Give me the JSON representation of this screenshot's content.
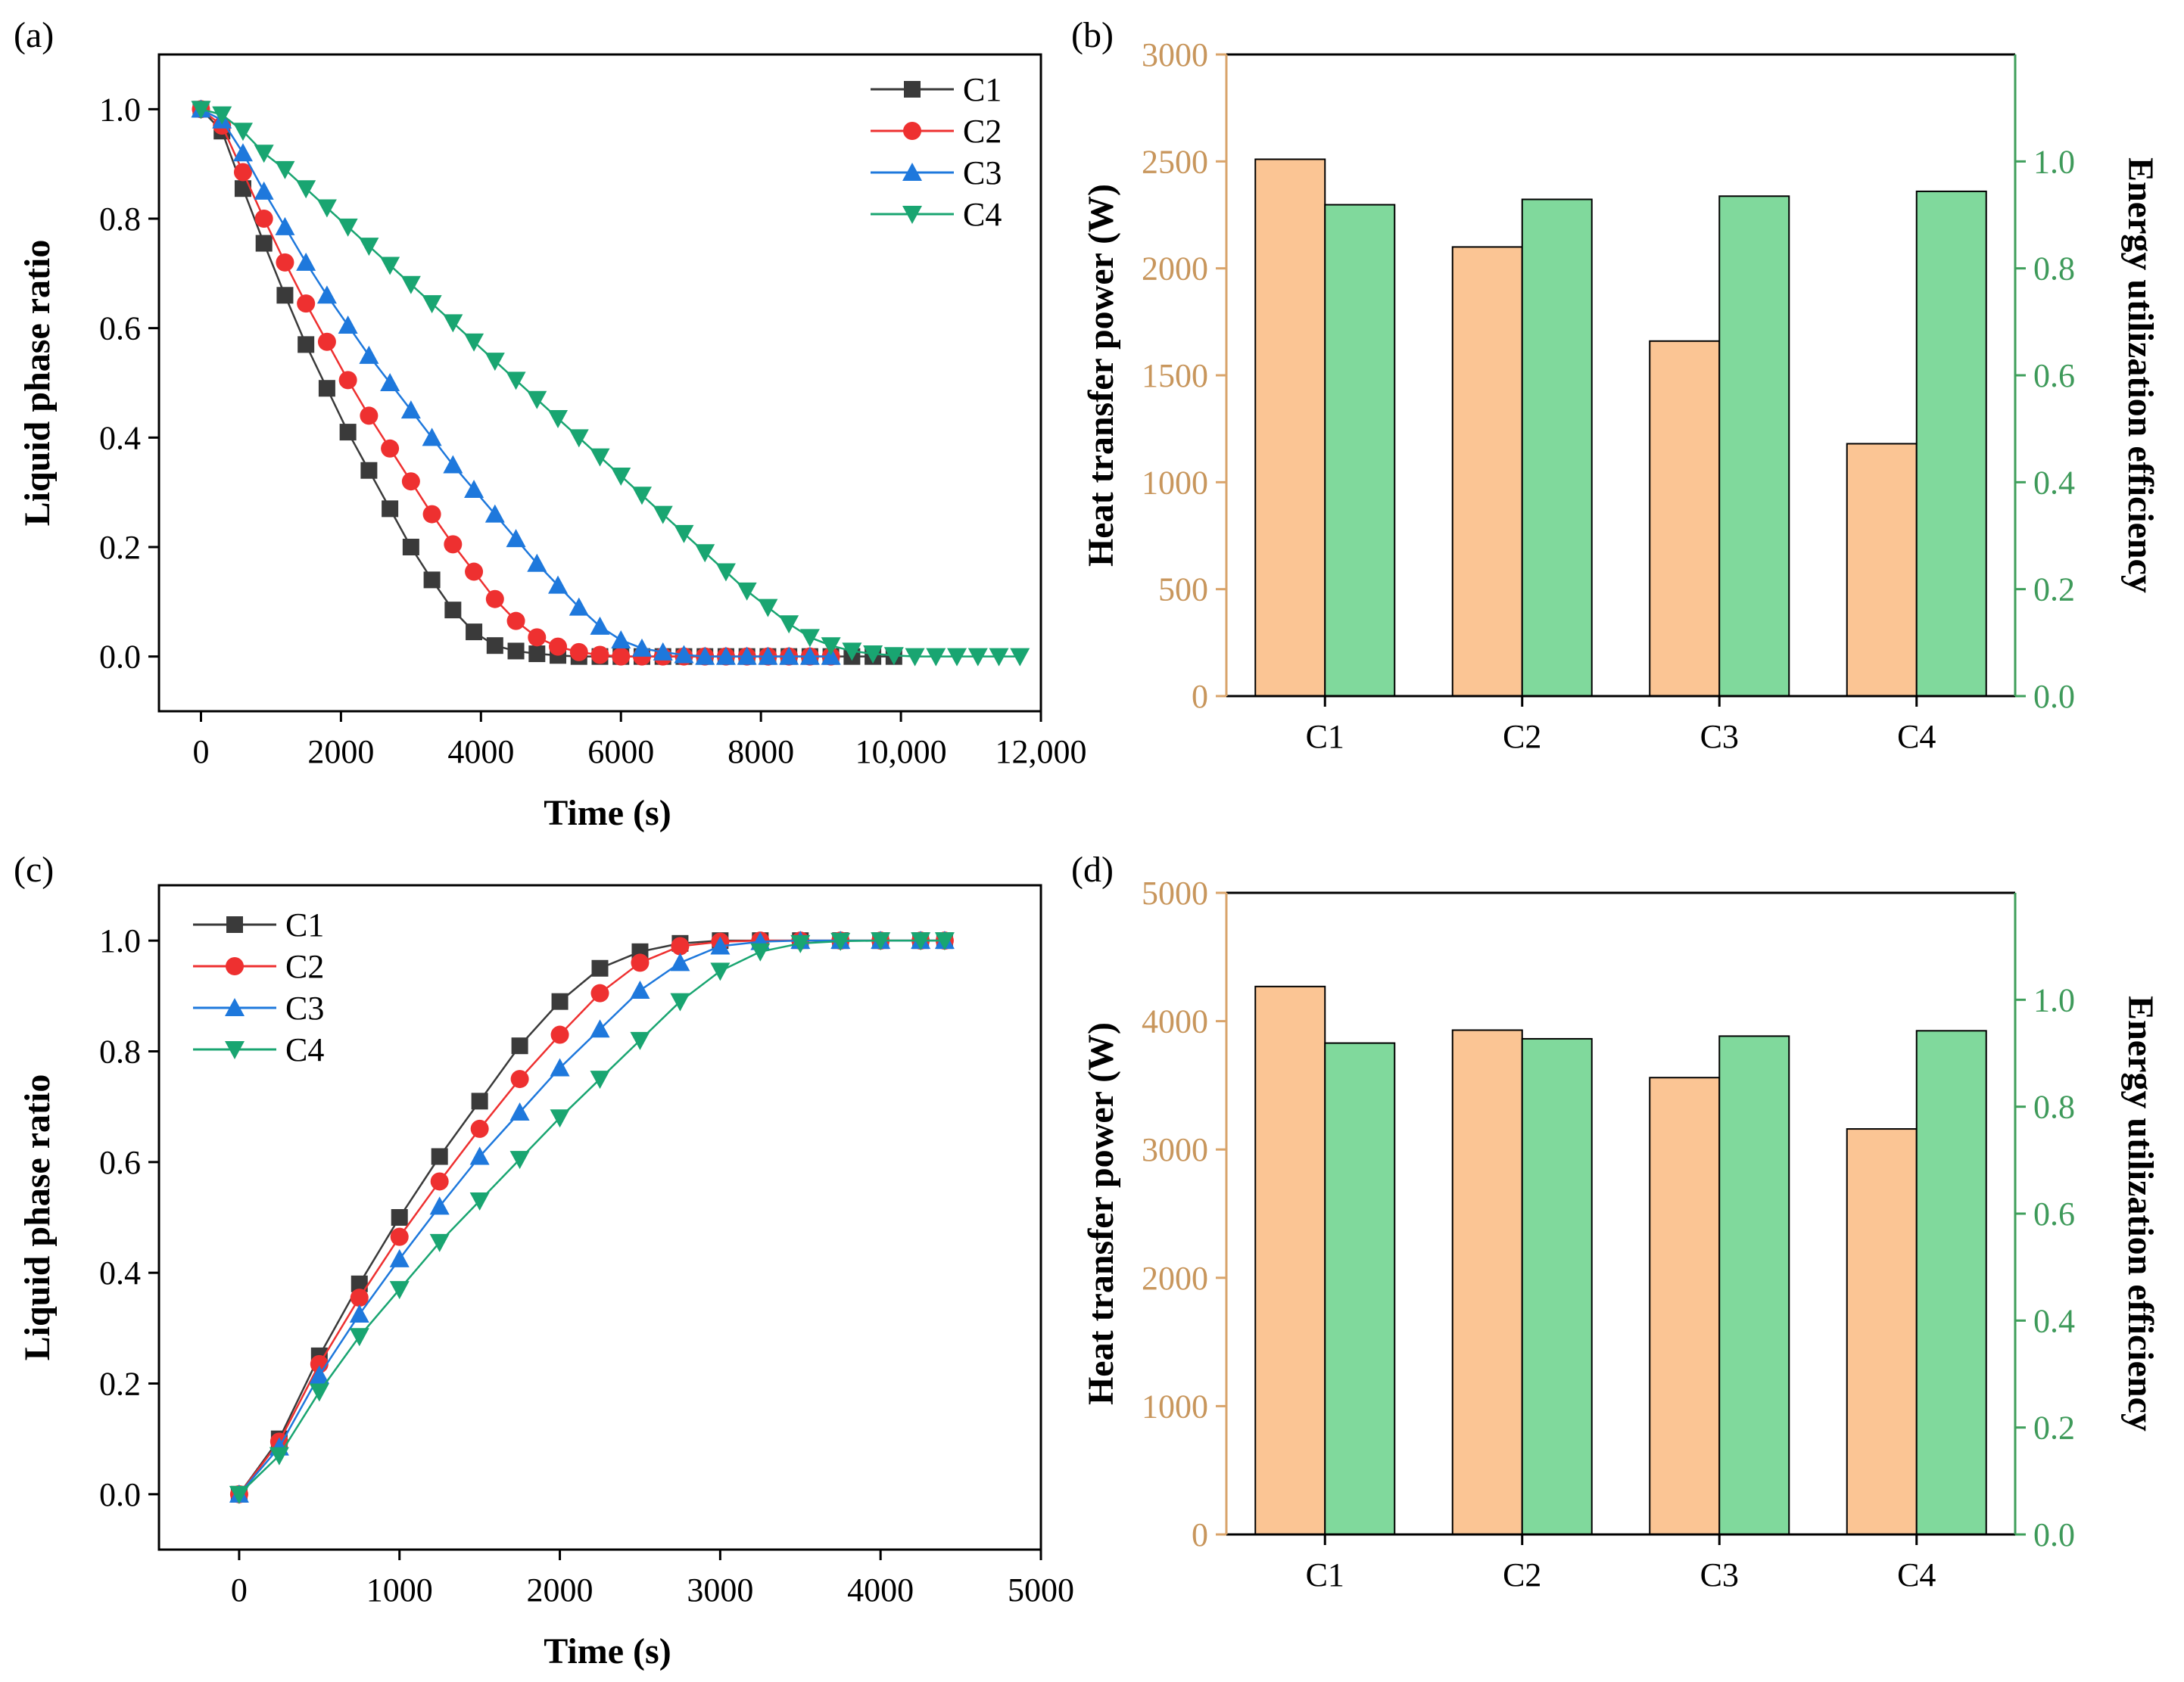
{
  "colors": {
    "C1": "#3a3a3a",
    "C2": "#ee3030",
    "C3": "#1e78dc",
    "C4": "#19a571",
    "bar_power": "#fbc594",
    "bar_eff": "#80d99c",
    "axis_orange": "#d9a46b",
    "axis_green": "#3f9f5b"
  },
  "chart_data": [
    {
      "panel": "(a)",
      "type": "line",
      "xlabel": "Time (s)",
      "ylabel": "Liquid phase ratio",
      "xlim": [
        -600,
        12000
      ],
      "ylim": [
        -0.1,
        1.1
      ],
      "x_ticks": [
        0,
        2000,
        4000,
        6000,
        8000,
        10000,
        12000
      ],
      "x_tick_labels": [
        "0",
        "2000",
        "4000",
        "6000",
        "8000",
        "10,000",
        "12,000"
      ],
      "y_ticks": [
        0.0,
        0.2,
        0.4,
        0.6,
        0.8,
        1.0
      ],
      "y_tick_labels": [
        "0.0",
        "0.2",
        "0.4",
        "0.6",
        "0.8",
        "1.0"
      ],
      "legend_position": "top-right",
      "series": [
        {
          "name": "C1",
          "marker": "square",
          "x": [
            0,
            300,
            600,
            900,
            1200,
            1500,
            1800,
            2100,
            2400,
            2700,
            3000,
            3300,
            3600,
            3900,
            4200,
            4500,
            4800,
            5100,
            5400,
            5700,
            6000,
            6300,
            6600,
            6900,
            7200,
            7500,
            7800,
            8100,
            8400,
            8700,
            9000,
            9300,
            9600,
            9900
          ],
          "y": [
            1.0,
            0.96,
            0.855,
            0.755,
            0.66,
            0.57,
            0.49,
            0.41,
            0.34,
            0.27,
            0.2,
            0.14,
            0.085,
            0.045,
            0.02,
            0.01,
            0.005,
            0.002,
            0,
            0,
            0,
            0,
            0,
            0,
            0,
            0,
            0,
            0,
            0,
            0,
            0,
            0,
            0,
            0
          ]
        },
        {
          "name": "C2",
          "marker": "circle",
          "x": [
            0,
            300,
            600,
            900,
            1200,
            1500,
            1800,
            2100,
            2400,
            2700,
            3000,
            3300,
            3600,
            3900,
            4200,
            4500,
            4800,
            5100,
            5400,
            5700,
            6000,
            6300,
            6600,
            6900,
            7200,
            7500,
            7800,
            8100,
            8400,
            8700,
            9000
          ],
          "y": [
            1.0,
            0.97,
            0.885,
            0.8,
            0.72,
            0.645,
            0.575,
            0.505,
            0.44,
            0.38,
            0.32,
            0.26,
            0.205,
            0.155,
            0.105,
            0.065,
            0.035,
            0.018,
            0.008,
            0.003,
            0,
            0,
            0,
            0,
            0,
            0,
            0,
            0,
            0,
            0,
            0
          ]
        },
        {
          "name": "C3",
          "marker": "triangle-up",
          "x": [
            0,
            300,
            600,
            900,
            1200,
            1500,
            1800,
            2100,
            2400,
            2700,
            3000,
            3300,
            3600,
            3900,
            4200,
            4500,
            4800,
            5100,
            5400,
            5700,
            6000,
            6300,
            6600,
            6900,
            7200,
            7500,
            7800,
            8100,
            8400,
            8700,
            9000
          ],
          "y": [
            1.0,
            0.98,
            0.92,
            0.85,
            0.785,
            0.72,
            0.66,
            0.605,
            0.55,
            0.5,
            0.45,
            0.4,
            0.35,
            0.305,
            0.26,
            0.215,
            0.17,
            0.13,
            0.09,
            0.055,
            0.03,
            0.015,
            0.008,
            0.003,
            0,
            0,
            0,
            0,
            0,
            0,
            0
          ]
        },
        {
          "name": "C4",
          "marker": "triangle-down",
          "x": [
            0,
            300,
            600,
            900,
            1200,
            1500,
            1800,
            2100,
            2400,
            2700,
            3000,
            3300,
            3600,
            3900,
            4200,
            4500,
            4800,
            5100,
            5400,
            5700,
            6000,
            6300,
            6600,
            6900,
            7200,
            7500,
            7800,
            8100,
            8400,
            8700,
            9000,
            9300,
            9600,
            9900,
            10200,
            10500,
            10800,
            11100,
            11400,
            11700
          ],
          "y": [
            1.0,
            0.99,
            0.96,
            0.92,
            0.89,
            0.855,
            0.82,
            0.785,
            0.75,
            0.715,
            0.68,
            0.645,
            0.61,
            0.575,
            0.54,
            0.505,
            0.47,
            0.435,
            0.4,
            0.365,
            0.33,
            0.295,
            0.26,
            0.225,
            0.19,
            0.155,
            0.12,
            0.09,
            0.06,
            0.035,
            0.02,
            0.01,
            0.005,
            0.002,
            0,
            0,
            0,
            0,
            0,
            0
          ]
        }
      ]
    },
    {
      "panel": "(b)",
      "type": "bar",
      "categories": [
        "C1",
        "C2",
        "C3",
        "C4"
      ],
      "ylabel": "Heat transfer power (W)",
      "ylabel_right": "Energy utilization efficiency",
      "ylim": [
        0,
        3000
      ],
      "ylim_right": [
        0,
        1.2
      ],
      "y_ticks": [
        0,
        500,
        1000,
        1500,
        2000,
        2500,
        3000
      ],
      "y_tick_labels": [
        "0",
        "500",
        "1000",
        "1500",
        "2000",
        "2500",
        "3000"
      ],
      "y_ticks_right": [
        0.0,
        0.2,
        0.4,
        0.6,
        0.8,
        1.0
      ],
      "y_tick_labels_right": [
        "0.0",
        "0.2",
        "0.4",
        "0.6",
        "0.8",
        "1.0"
      ],
      "series": [
        {
          "name": "Heat transfer power",
          "axis": "left",
          "values": [
            2510,
            2100,
            1660,
            1180
          ]
        },
        {
          "name": "Energy utilization efficiency",
          "axis": "right",
          "values": [
            0.919,
            0.929,
            0.935,
            0.944
          ]
        }
      ]
    },
    {
      "panel": "(c)",
      "type": "line",
      "xlabel": "Time (s)",
      "ylabel": "Liquid phase ratio",
      "xlim": [
        -500,
        5000
      ],
      "ylim": [
        -0.1,
        1.1
      ],
      "x_ticks": [
        0,
        1000,
        2000,
        3000,
        4000,
        5000
      ],
      "x_tick_labels": [
        "0",
        "1000",
        "2000",
        "3000",
        "4000",
        "5000"
      ],
      "y_ticks": [
        0.0,
        0.2,
        0.4,
        0.6,
        0.8,
        1.0
      ],
      "y_tick_labels": [
        "0.0",
        "0.2",
        "0.4",
        "0.6",
        "0.8",
        "1.0"
      ],
      "legend_position": "top-left",
      "series": [
        {
          "name": "C1",
          "marker": "square",
          "x": [
            0,
            250,
            500,
            750,
            1000,
            1250,
            1500,
            1750,
            2000,
            2250,
            2500,
            2750,
            3000,
            3250,
            3500,
            3750,
            4000,
            4250,
            4400
          ],
          "y": [
            0,
            0.1,
            0.25,
            0.38,
            0.5,
            0.61,
            0.71,
            0.81,
            0.89,
            0.95,
            0.98,
            0.995,
            1.0,
            1.0,
            1.0,
            1.0,
            1.0,
            1.0,
            1.0
          ]
        },
        {
          "name": "C2",
          "marker": "circle",
          "x": [
            0,
            250,
            500,
            750,
            1000,
            1250,
            1500,
            1750,
            2000,
            2250,
            2500,
            2750,
            3000,
            3250,
            3500,
            3750,
            4000,
            4250,
            4400
          ],
          "y": [
            0,
            0.095,
            0.235,
            0.355,
            0.465,
            0.565,
            0.66,
            0.75,
            0.83,
            0.905,
            0.96,
            0.99,
            0.998,
            1.0,
            1.0,
            1.0,
            1.0,
            1.0,
            1.0
          ]
        },
        {
          "name": "C3",
          "marker": "triangle-up",
          "x": [
            0,
            250,
            500,
            750,
            1000,
            1250,
            1500,
            1750,
            2000,
            2250,
            2500,
            2750,
            3000,
            3250,
            3500,
            3750,
            4000,
            4250,
            4400
          ],
          "y": [
            0,
            0.085,
            0.215,
            0.325,
            0.425,
            0.52,
            0.61,
            0.69,
            0.77,
            0.84,
            0.91,
            0.96,
            0.99,
            0.998,
            1.0,
            1.0,
            1.0,
            1.0,
            1.0
          ]
        },
        {
          "name": "C4",
          "marker": "triangle-down",
          "x": [
            0,
            250,
            500,
            750,
            1000,
            1250,
            1500,
            1750,
            2000,
            2250,
            2500,
            2750,
            3000,
            3250,
            3500,
            3750,
            4000,
            4250,
            4400
          ],
          "y": [
            0,
            0.07,
            0.185,
            0.285,
            0.37,
            0.455,
            0.53,
            0.605,
            0.68,
            0.75,
            0.82,
            0.89,
            0.945,
            0.98,
            0.995,
            0.999,
            1.0,
            1.0,
            1.0
          ]
        }
      ]
    },
    {
      "panel": "(d)",
      "type": "bar",
      "categories": [
        "C1",
        "C2",
        "C3",
        "C4"
      ],
      "ylabel": "Heat transfer power (W)",
      "ylabel_right": "Energy utilization efficiency",
      "ylim": [
        0,
        5000
      ],
      "ylim_right": [
        0,
        1.2
      ],
      "y_ticks": [
        0,
        1000,
        2000,
        3000,
        4000,
        5000
      ],
      "y_tick_labels": [
        "0",
        "1000",
        "2000",
        "3000",
        "4000",
        "5000"
      ],
      "y_ticks_right": [
        0.0,
        0.2,
        0.4,
        0.6,
        0.8,
        1.0
      ],
      "y_tick_labels_right": [
        "0.0",
        "0.2",
        "0.4",
        "0.6",
        "0.8",
        "1.0"
      ],
      "series": [
        {
          "name": "Heat transfer power",
          "axis": "left",
          "values": [
            4270,
            3930,
            3560,
            3160
          ]
        },
        {
          "name": "Energy utilization efficiency",
          "axis": "right",
          "values": [
            0.919,
            0.927,
            0.932,
            0.942
          ]
        }
      ]
    }
  ]
}
